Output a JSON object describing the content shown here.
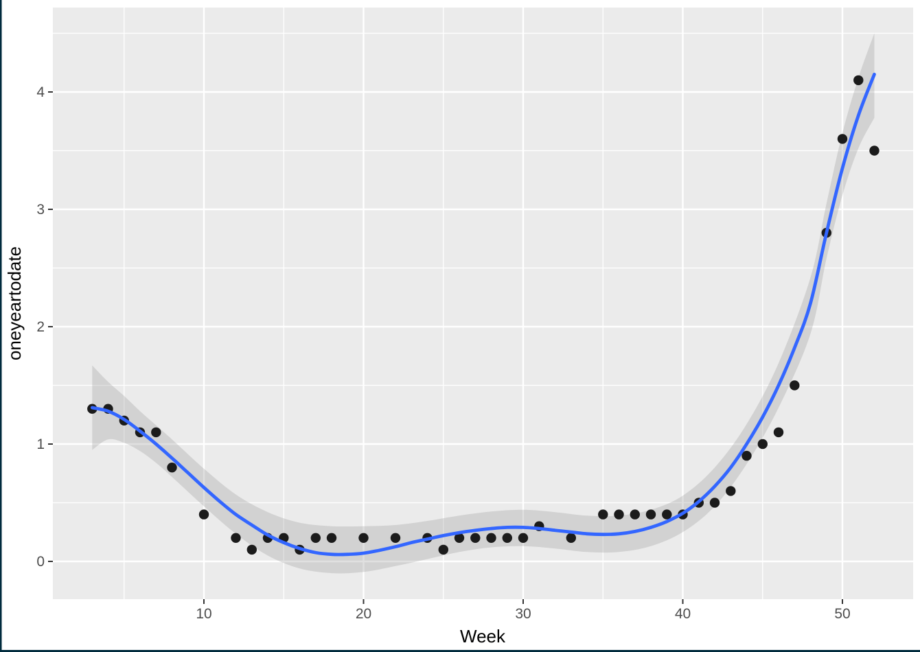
{
  "chart_data": {
    "type": "scatter",
    "title": "",
    "xlabel": "Week",
    "ylabel": "oneyeartodate",
    "legend_position": "none",
    "grid": "major and minor white gridlines on gray panel (ggplot2 theme_gray)",
    "xlim": [
      0.55,
      54.45
    ],
    "ylim": [
      -0.32,
      4.72
    ],
    "x_major_ticks": [
      10,
      20,
      30,
      40,
      50
    ],
    "x_tick_labels": [
      "10",
      "20",
      "30",
      "40",
      "50"
    ],
    "x_minor_gridlines": [
      5,
      15,
      25,
      35,
      45
    ],
    "y_major_ticks": [
      0,
      1,
      2,
      3,
      4
    ],
    "y_tick_labels": [
      "0",
      "1",
      "2",
      "3",
      "4"
    ],
    "y_minor_gridlines": [
      0.5,
      1.5,
      2.5,
      3.5,
      4.5
    ],
    "series": [
      {
        "name": "observations",
        "type": "scatter",
        "x": [
          3,
          4,
          5,
          6,
          7,
          8,
          10,
          12,
          13,
          14,
          15,
          16,
          17,
          18,
          20,
          22,
          24,
          25,
          26,
          27,
          28,
          29,
          30,
          31,
          33,
          35,
          36,
          37,
          38,
          39,
          40,
          41,
          42,
          43,
          44,
          45,
          46,
          47,
          49,
          50,
          51,
          52
        ],
        "y": [
          1.3,
          1.3,
          1.2,
          1.1,
          1.1,
          0.8,
          0.4,
          0.2,
          0.1,
          0.2,
          0.2,
          0.1,
          0.2,
          0.2,
          0.2,
          0.2,
          0.2,
          0.1,
          0.2,
          0.2,
          0.2,
          0.2,
          0.2,
          0.3,
          0.2,
          0.4,
          0.4,
          0.4,
          0.4,
          0.4,
          0.4,
          0.5,
          0.5,
          0.6,
          0.9,
          1.0,
          1.1,
          1.5,
          2.8,
          3.6,
          4.1,
          3.5
        ]
      },
      {
        "name": "loess-smooth",
        "type": "line",
        "points": [
          [
            3,
            1.31
          ],
          [
            4,
            1.28
          ],
          [
            5,
            1.21
          ],
          [
            6,
            1.11
          ],
          [
            7,
            1.0
          ],
          [
            8,
            0.88
          ],
          [
            9,
            0.755
          ],
          [
            10,
            0.63
          ],
          [
            11,
            0.51
          ],
          [
            12,
            0.4
          ],
          [
            13,
            0.31
          ],
          [
            14,
            0.225
          ],
          [
            15,
            0.16
          ],
          [
            16,
            0.11
          ],
          [
            17,
            0.075
          ],
          [
            18,
            0.06
          ],
          [
            19,
            0.06
          ],
          [
            20,
            0.07
          ],
          [
            21,
            0.095
          ],
          [
            22,
            0.125
          ],
          [
            23,
            0.16
          ],
          [
            24,
            0.19
          ],
          [
            25,
            0.22
          ],
          [
            26,
            0.245
          ],
          [
            27,
            0.265
          ],
          [
            28,
            0.28
          ],
          [
            29,
            0.29
          ],
          [
            30,
            0.29
          ],
          [
            31,
            0.28
          ],
          [
            32,
            0.265
          ],
          [
            33,
            0.25
          ],
          [
            34,
            0.235
          ],
          [
            35,
            0.23
          ],
          [
            36,
            0.235
          ],
          [
            37,
            0.255
          ],
          [
            38,
            0.29
          ],
          [
            39,
            0.34
          ],
          [
            40,
            0.41
          ],
          [
            41,
            0.51
          ],
          [
            42,
            0.64
          ],
          [
            43,
            0.8
          ],
          [
            44,
            1.0
          ],
          [
            45,
            1.23
          ],
          [
            46,
            1.5
          ],
          [
            47,
            1.82
          ],
          [
            48,
            2.2
          ],
          [
            49,
            2.8
          ],
          [
            50,
            3.35
          ],
          [
            51,
            3.8
          ],
          [
            52,
            4.15
          ]
        ]
      },
      {
        "name": "confidence-ribbon",
        "type": "area",
        "points_w_lo_hi": [
          [
            3,
            0.95,
            1.67
          ],
          [
            4,
            1.04,
            1.53
          ],
          [
            5,
            1.01,
            1.41
          ],
          [
            6,
            0.94,
            1.28
          ],
          [
            7,
            0.84,
            1.16
          ],
          [
            8,
            0.72,
            1.04
          ],
          [
            10,
            0.47,
            0.79
          ],
          [
            12,
            0.235,
            0.57
          ],
          [
            14,
            0.05,
            0.42
          ],
          [
            16,
            -0.06,
            0.33
          ],
          [
            18,
            -0.1,
            0.3
          ],
          [
            20,
            -0.09,
            0.3
          ],
          [
            22,
            -0.04,
            0.31
          ],
          [
            24,
            0.02,
            0.345
          ],
          [
            26,
            0.08,
            0.39
          ],
          [
            28,
            0.12,
            0.425
          ],
          [
            30,
            0.13,
            0.44
          ],
          [
            32,
            0.11,
            0.42
          ],
          [
            34,
            0.08,
            0.39
          ],
          [
            36,
            0.08,
            0.39
          ],
          [
            38,
            0.13,
            0.44
          ],
          [
            40,
            0.25,
            0.56
          ],
          [
            42,
            0.47,
            0.8
          ],
          [
            44,
            0.83,
            1.17
          ],
          [
            46,
            1.31,
            1.69
          ],
          [
            48,
            1.94,
            2.42
          ],
          [
            49,
            2.58,
            3.05
          ],
          [
            50,
            3.12,
            3.65
          ],
          [
            51,
            3.52,
            4.12
          ],
          [
            52,
            3.78,
            4.5
          ]
        ]
      }
    ],
    "colors": {
      "outer_background": "#FFFFFF",
      "panel_background": "#EBEBEB",
      "gridline": "#FFFFFF",
      "point": "#1B1B1B",
      "smooth_line": "#3366FF",
      "ribbon_gray": "#999999",
      "ribbon_opacity": 0.3,
      "axis_text": "#4D4D4D",
      "axis_title": "#000000",
      "tick_mark": "#333333",
      "frame_border": "#002B3D"
    }
  }
}
